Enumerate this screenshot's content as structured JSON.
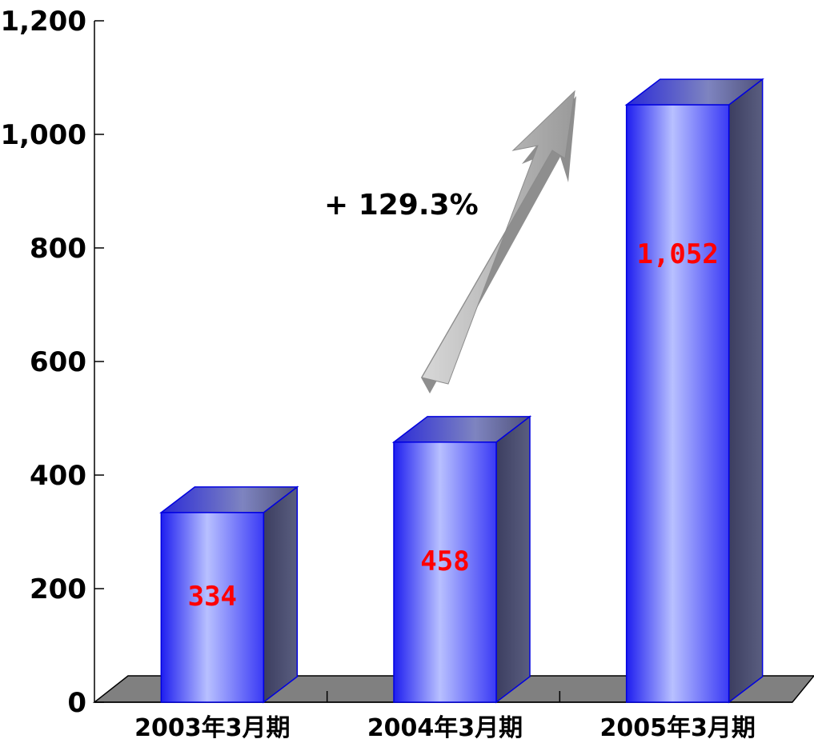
{
  "chart_data": {
    "type": "bar",
    "style": "3d-cylinder-like bars",
    "categories": [
      "2003年3月期",
      "2004年3月期",
      "2005年3月期"
    ],
    "values": [
      334,
      458,
      1052
    ],
    "data_labels": [
      "334",
      "458",
      "1,052"
    ],
    "y_ticks": [
      "0",
      "200",
      "400",
      "600",
      "800",
      "1,000",
      "1,200"
    ],
    "ylim": [
      0,
      1200
    ],
    "title": "",
    "xlabel": "",
    "ylabel": "",
    "grid": false,
    "annotation": {
      "text": "+ 129.3%",
      "icon": "up-right-arrow-icon"
    },
    "colors": {
      "bar_front": "#a8b0ff",
      "bar_edge": "#0000e0",
      "bar_side": "#4a4e70",
      "data_label": "#ff0000",
      "floor": "#808080",
      "arrow": "#b0b0b0"
    }
  }
}
